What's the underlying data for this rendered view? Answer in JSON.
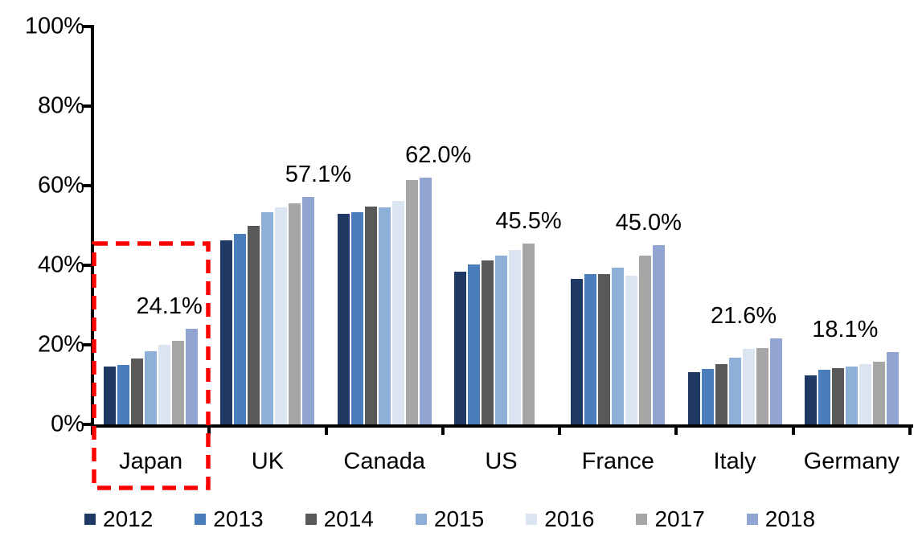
{
  "chart_data": {
    "type": "bar",
    "title": "",
    "xlabel": "",
    "ylabel": "",
    "ylim": [
      0,
      100
    ],
    "grid": false,
    "legend_position": "bottom",
    "y_ticks": [
      "0%",
      "20%",
      "40%",
      "60%",
      "80%",
      "100%"
    ],
    "categories": [
      "Japan",
      "UK",
      "Canada",
      "US",
      "France",
      "Italy",
      "Germany"
    ],
    "series": [
      {
        "name": "2012",
        "color": "#1F3864",
        "values": [
          14.6,
          46.3,
          53.0,
          38.3,
          36.5,
          13.2,
          12.4
        ]
      },
      {
        "name": "2013",
        "color": "#4A7EBB",
        "values": [
          15.0,
          47.8,
          53.4,
          40.2,
          37.8,
          13.9,
          13.8
        ]
      },
      {
        "name": "2014",
        "color": "#595959",
        "values": [
          16.6,
          50.0,
          54.8,
          41.2,
          37.7,
          15.2,
          14.2
        ]
      },
      {
        "name": "2015",
        "color": "#8DB0D9",
        "values": [
          18.3,
          53.3,
          54.5,
          42.4,
          39.4,
          16.7,
          14.6
        ]
      },
      {
        "name": "2016",
        "color": "#DBE4F1",
        "values": [
          20.0,
          54.5,
          56.2,
          43.8,
          37.4,
          18.9,
          15.1
        ]
      },
      {
        "name": "2017",
        "color": "#A6A6A6",
        "values": [
          21.1,
          55.6,
          61.5,
          45.5,
          42.4,
          19.1,
          15.7
        ]
      },
      {
        "name": "2018",
        "color": "#92A5D2",
        "values": [
          24.1,
          57.1,
          62.0,
          null,
          45.0,
          21.6,
          18.1
        ]
      }
    ],
    "value_labels": [
      "24.1%",
      "57.1%",
      "62.0%",
      "45.5%",
      "45.0%",
      "21.6%",
      "18.1%"
    ],
    "highlight": {
      "category": "Japan",
      "style": "red-dashed-box",
      "color": "#FF0000"
    }
  }
}
